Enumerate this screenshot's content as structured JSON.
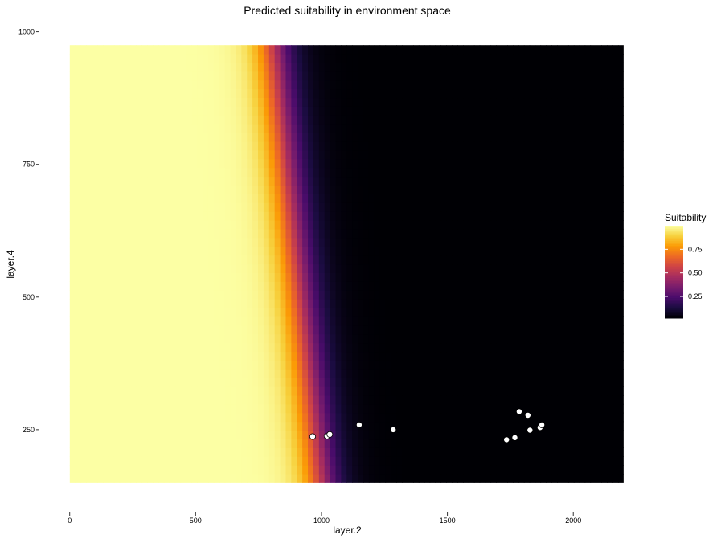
{
  "chart_data": {
    "type": "heatmap",
    "title": "Predicted suitability in environment space",
    "xlabel": "layer.2",
    "ylabel": "layer.4",
    "xlim": [
      -15,
      2210
    ],
    "ylim": [
      112,
      1013
    ],
    "raster_extent": {
      "x": [
        0,
        2200
      ],
      "y": [
        150,
        975
      ]
    },
    "x_ticks": [
      0,
      500,
      1000,
      1500,
      2000
    ],
    "y_ticks": [
      250,
      500,
      750,
      1000
    ],
    "grid": false,
    "colormap": "inferno",
    "colors": [
      "#000004",
      "#1b0c41",
      "#4a0c6b",
      "#781c6d",
      "#a52c60",
      "#cf4446",
      "#ed6925",
      "#fb9b06",
      "#f7d13d",
      "#fcffa4"
    ],
    "surface": {
      "boundary_points": [
        {
          "x": 1000,
          "y": 150
        },
        {
          "x": 810,
          "y": 975
        }
      ],
      "transition_width": 370
    },
    "points": [
      {
        "x": 965,
        "y": 237
      },
      {
        "x": 1022,
        "y": 238
      },
      {
        "x": 1033,
        "y": 241
      },
      {
        "x": 1150,
        "y": 259
      },
      {
        "x": 1285,
        "y": 250
      },
      {
        "x": 1735,
        "y": 231
      },
      {
        "x": 1768,
        "y": 235
      },
      {
        "x": 1785,
        "y": 284
      },
      {
        "x": 1820,
        "y": 277
      },
      {
        "x": 1828,
        "y": 249
      },
      {
        "x": 1868,
        "y": 254
      },
      {
        "x": 1875,
        "y": 259
      }
    ],
    "legend": {
      "title": "Suitability",
      "position": "right",
      "range": [
        0.02,
        1.0
      ],
      "ticks": [
        {
          "value": 0.25,
          "label": "0.25"
        },
        {
          "value": 0.5,
          "label": "0.50"
        },
        {
          "value": 0.75,
          "label": "0.75"
        }
      ]
    }
  }
}
